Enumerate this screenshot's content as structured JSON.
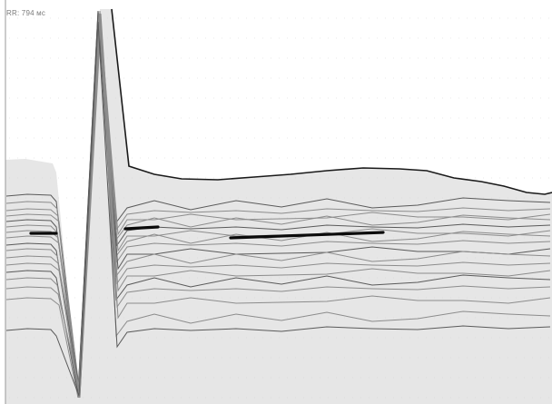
{
  "viewer": {
    "rr_label": "RR: 794 мс"
  },
  "colors": {
    "background": "#ffffff",
    "plot_fill": "#e6e6e6",
    "beat_trace": "#8c8c8c",
    "beat_trace_dark": "#5a5a5a",
    "envelope": "#1a1a1a",
    "measurement_marks": "#0a0a0a",
    "dotted_grid": "#d2d2d2"
  }
}
